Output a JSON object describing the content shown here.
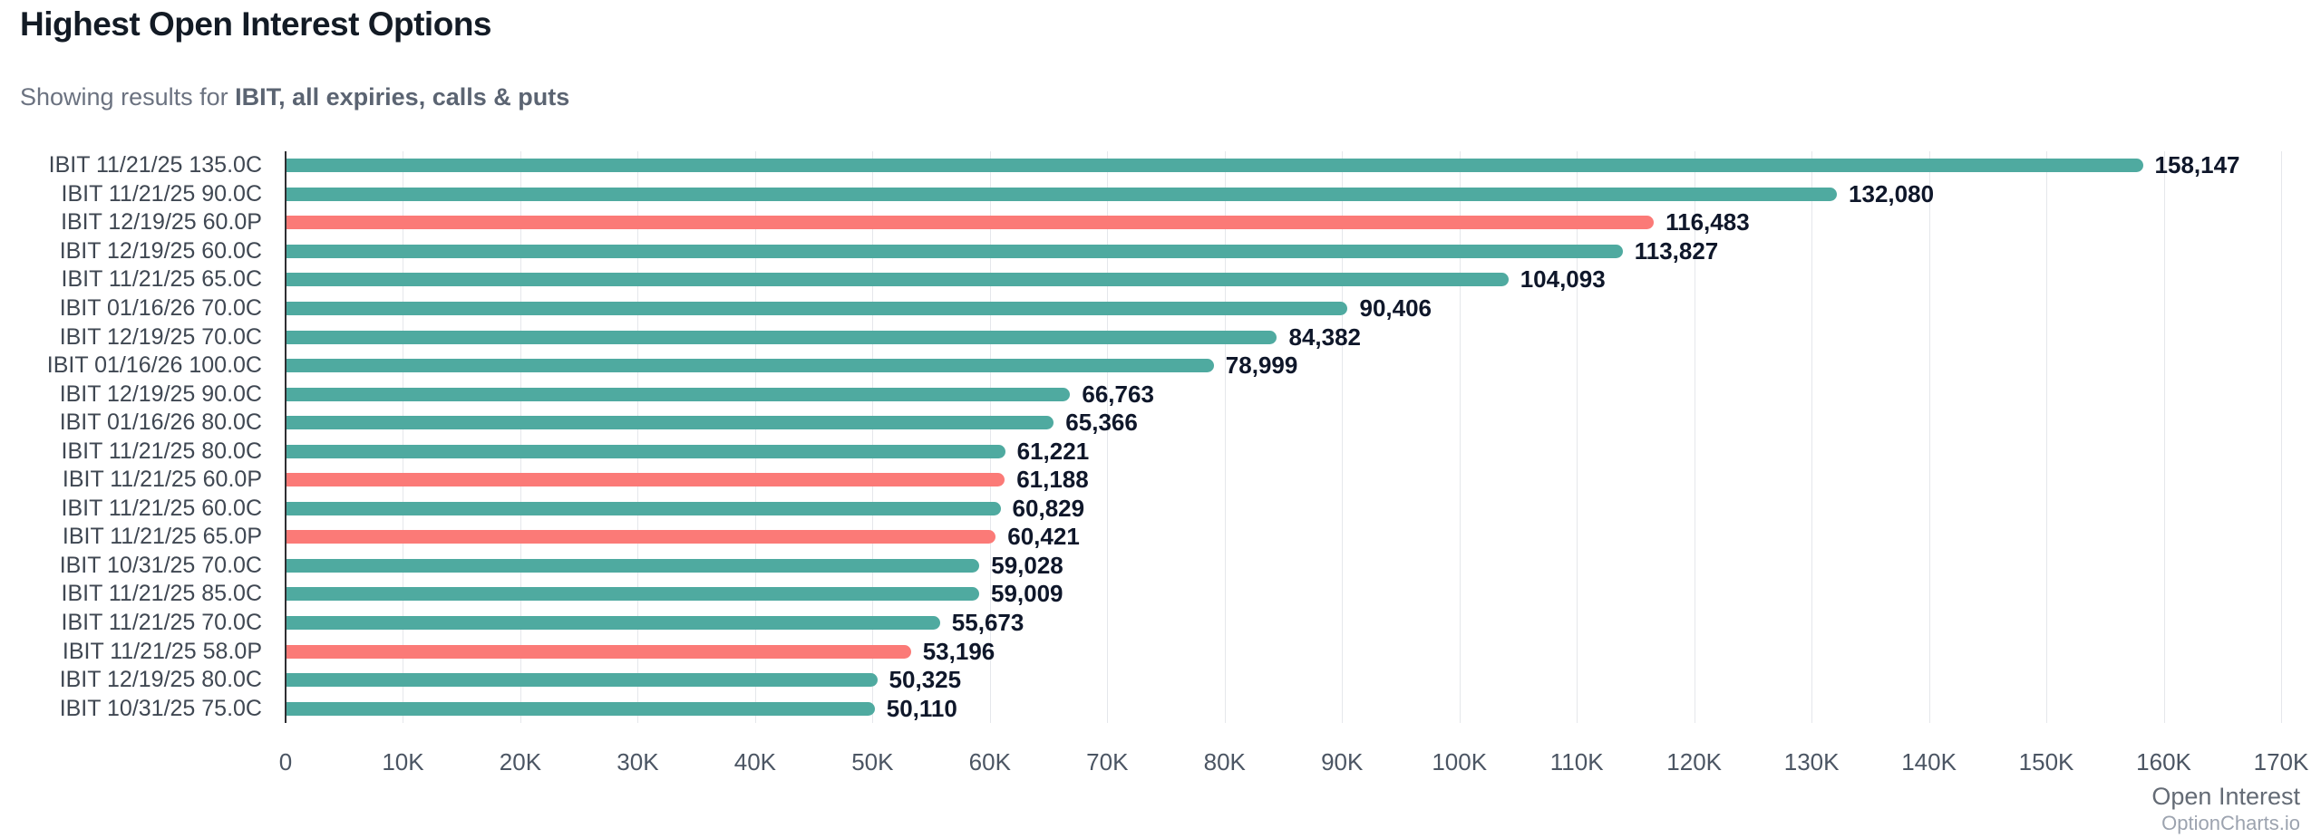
{
  "header": {
    "title": "Highest Open Interest Options",
    "subtitle_prefix": "Showing results for ",
    "subtitle_bold": "IBIT, all expiries, calls & puts"
  },
  "footer": {
    "axis_title": "Open Interest",
    "watermark": "OptionCharts.io"
  },
  "colors": {
    "call": "#4faaa0",
    "put": "#fb7a77",
    "gridline": "#e5e7eb",
    "axis_line": "#2f2f33"
  },
  "chart_data": {
    "type": "bar",
    "orientation": "horizontal",
    "title": "Highest Open Interest Options",
    "xlabel": "Open Interest",
    "ylabel": "",
    "xlim": [
      0,
      170000
    ],
    "grid": true,
    "x_ticks": [
      "0",
      "10K",
      "20K",
      "30K",
      "40K",
      "50K",
      "60K",
      "70K",
      "80K",
      "90K",
      "100K",
      "110K",
      "120K",
      "130K",
      "140K",
      "150K",
      "160K",
      "170K"
    ],
    "bars": [
      {
        "label": "IBIT 11/21/25 135.0C",
        "value": 158147,
        "display": "158,147",
        "kind": "call"
      },
      {
        "label": "IBIT 11/21/25 90.0C",
        "value": 132080,
        "display": "132,080",
        "kind": "call"
      },
      {
        "label": "IBIT 12/19/25 60.0P",
        "value": 116483,
        "display": "116,483",
        "kind": "put"
      },
      {
        "label": "IBIT 12/19/25 60.0C",
        "value": 113827,
        "display": "113,827",
        "kind": "call"
      },
      {
        "label": "IBIT 11/21/25 65.0C",
        "value": 104093,
        "display": "104,093",
        "kind": "call"
      },
      {
        "label": "IBIT 01/16/26 70.0C",
        "value": 90406,
        "display": "90,406",
        "kind": "call"
      },
      {
        "label": "IBIT 12/19/25 70.0C",
        "value": 84382,
        "display": "84,382",
        "kind": "call"
      },
      {
        "label": "IBIT 01/16/26 100.0C",
        "value": 78999,
        "display": "78,999",
        "kind": "call"
      },
      {
        "label": "IBIT 12/19/25 90.0C",
        "value": 66763,
        "display": "66,763",
        "kind": "call"
      },
      {
        "label": "IBIT 01/16/26 80.0C",
        "value": 65366,
        "display": "65,366",
        "kind": "call"
      },
      {
        "label": "IBIT 11/21/25 80.0C",
        "value": 61221,
        "display": "61,221",
        "kind": "call"
      },
      {
        "label": "IBIT 11/21/25 60.0P",
        "value": 61188,
        "display": "61,188",
        "kind": "put"
      },
      {
        "label": "IBIT 11/21/25 60.0C",
        "value": 60829,
        "display": "60,829",
        "kind": "call"
      },
      {
        "label": "IBIT 11/21/25 65.0P",
        "value": 60421,
        "display": "60,421",
        "kind": "put"
      },
      {
        "label": "IBIT 10/31/25 70.0C",
        "value": 59028,
        "display": "59,028",
        "kind": "call"
      },
      {
        "label": "IBIT 11/21/25 85.0C",
        "value": 59009,
        "display": "59,009",
        "kind": "call"
      },
      {
        "label": "IBIT 11/21/25 70.0C",
        "value": 55673,
        "display": "55,673",
        "kind": "call"
      },
      {
        "label": "IBIT 11/21/25 58.0P",
        "value": 53196,
        "display": "53,196",
        "kind": "put"
      },
      {
        "label": "IBIT 12/19/25 80.0C",
        "value": 50325,
        "display": "50,325",
        "kind": "call"
      },
      {
        "label": "IBIT 10/31/25 75.0C",
        "value": 50110,
        "display": "50,110",
        "kind": "call"
      }
    ]
  }
}
